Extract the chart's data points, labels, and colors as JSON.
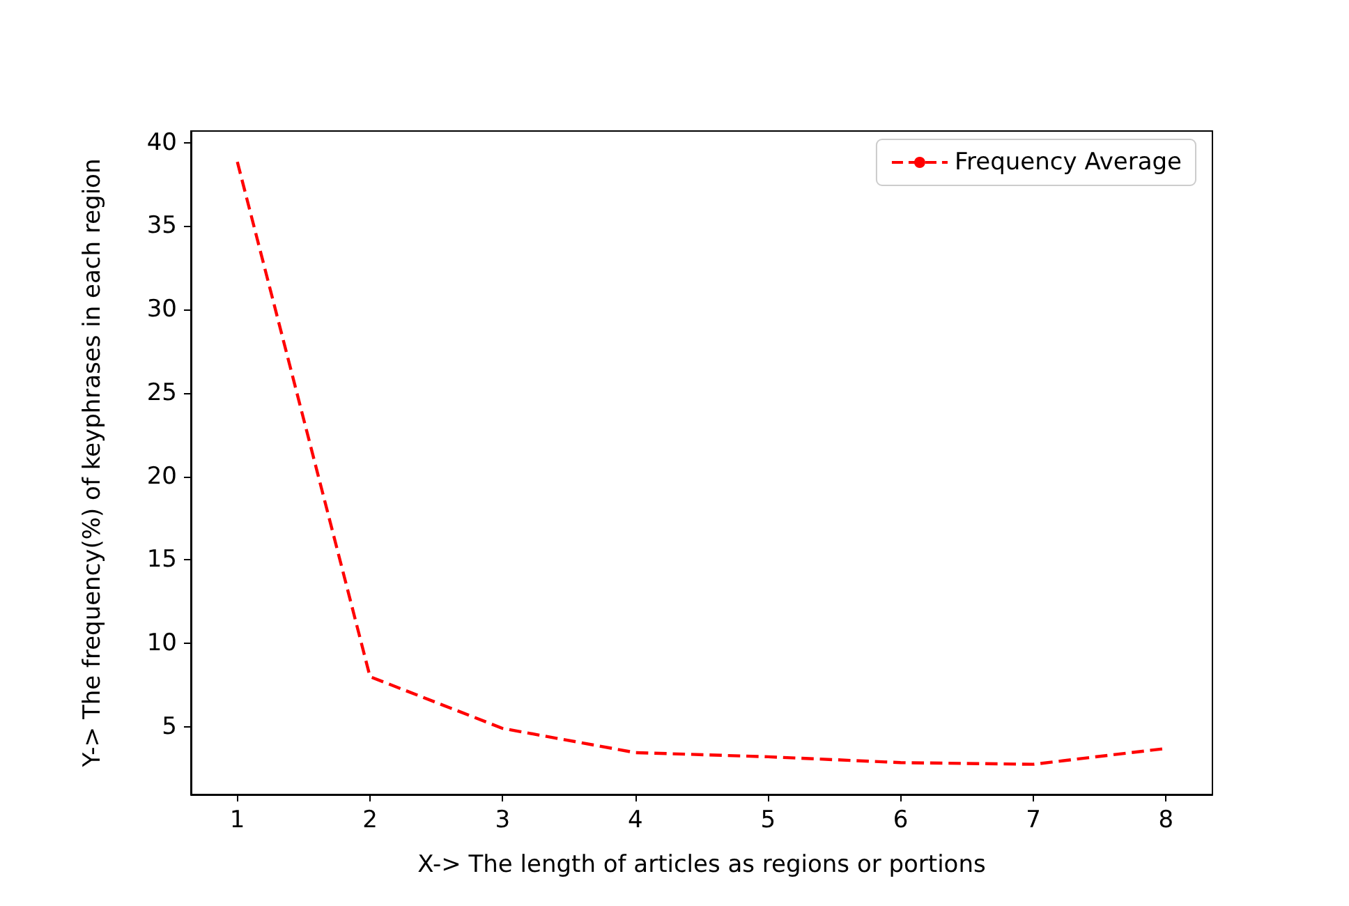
{
  "chart_data": {
    "type": "line",
    "xlabel": "X-> The length of articles as regions or portions",
    "ylabel": "Y-> The frequency(%) of keyphrases in each region",
    "x": [
      1,
      2,
      3,
      4,
      5,
      6,
      7,
      8
    ],
    "series": [
      {
        "name": "Frequency Average",
        "color": "#ff0000",
        "values": [
          38.85,
          8.0,
          4.9,
          3.45,
          3.2,
          2.85,
          2.75,
          3.7
        ]
      }
    ],
    "xlim": [
      0.65,
      8.35
    ],
    "xticks": [
      1,
      2,
      3,
      4,
      5,
      6,
      7,
      8
    ],
    "ylim": [
      0.94,
      40.7
    ],
    "yticks": [
      5,
      10,
      15,
      20,
      25,
      30,
      35,
      40
    ],
    "grid": false,
    "legend": "top right",
    "marker": "none",
    "line_style": "dashed"
  }
}
